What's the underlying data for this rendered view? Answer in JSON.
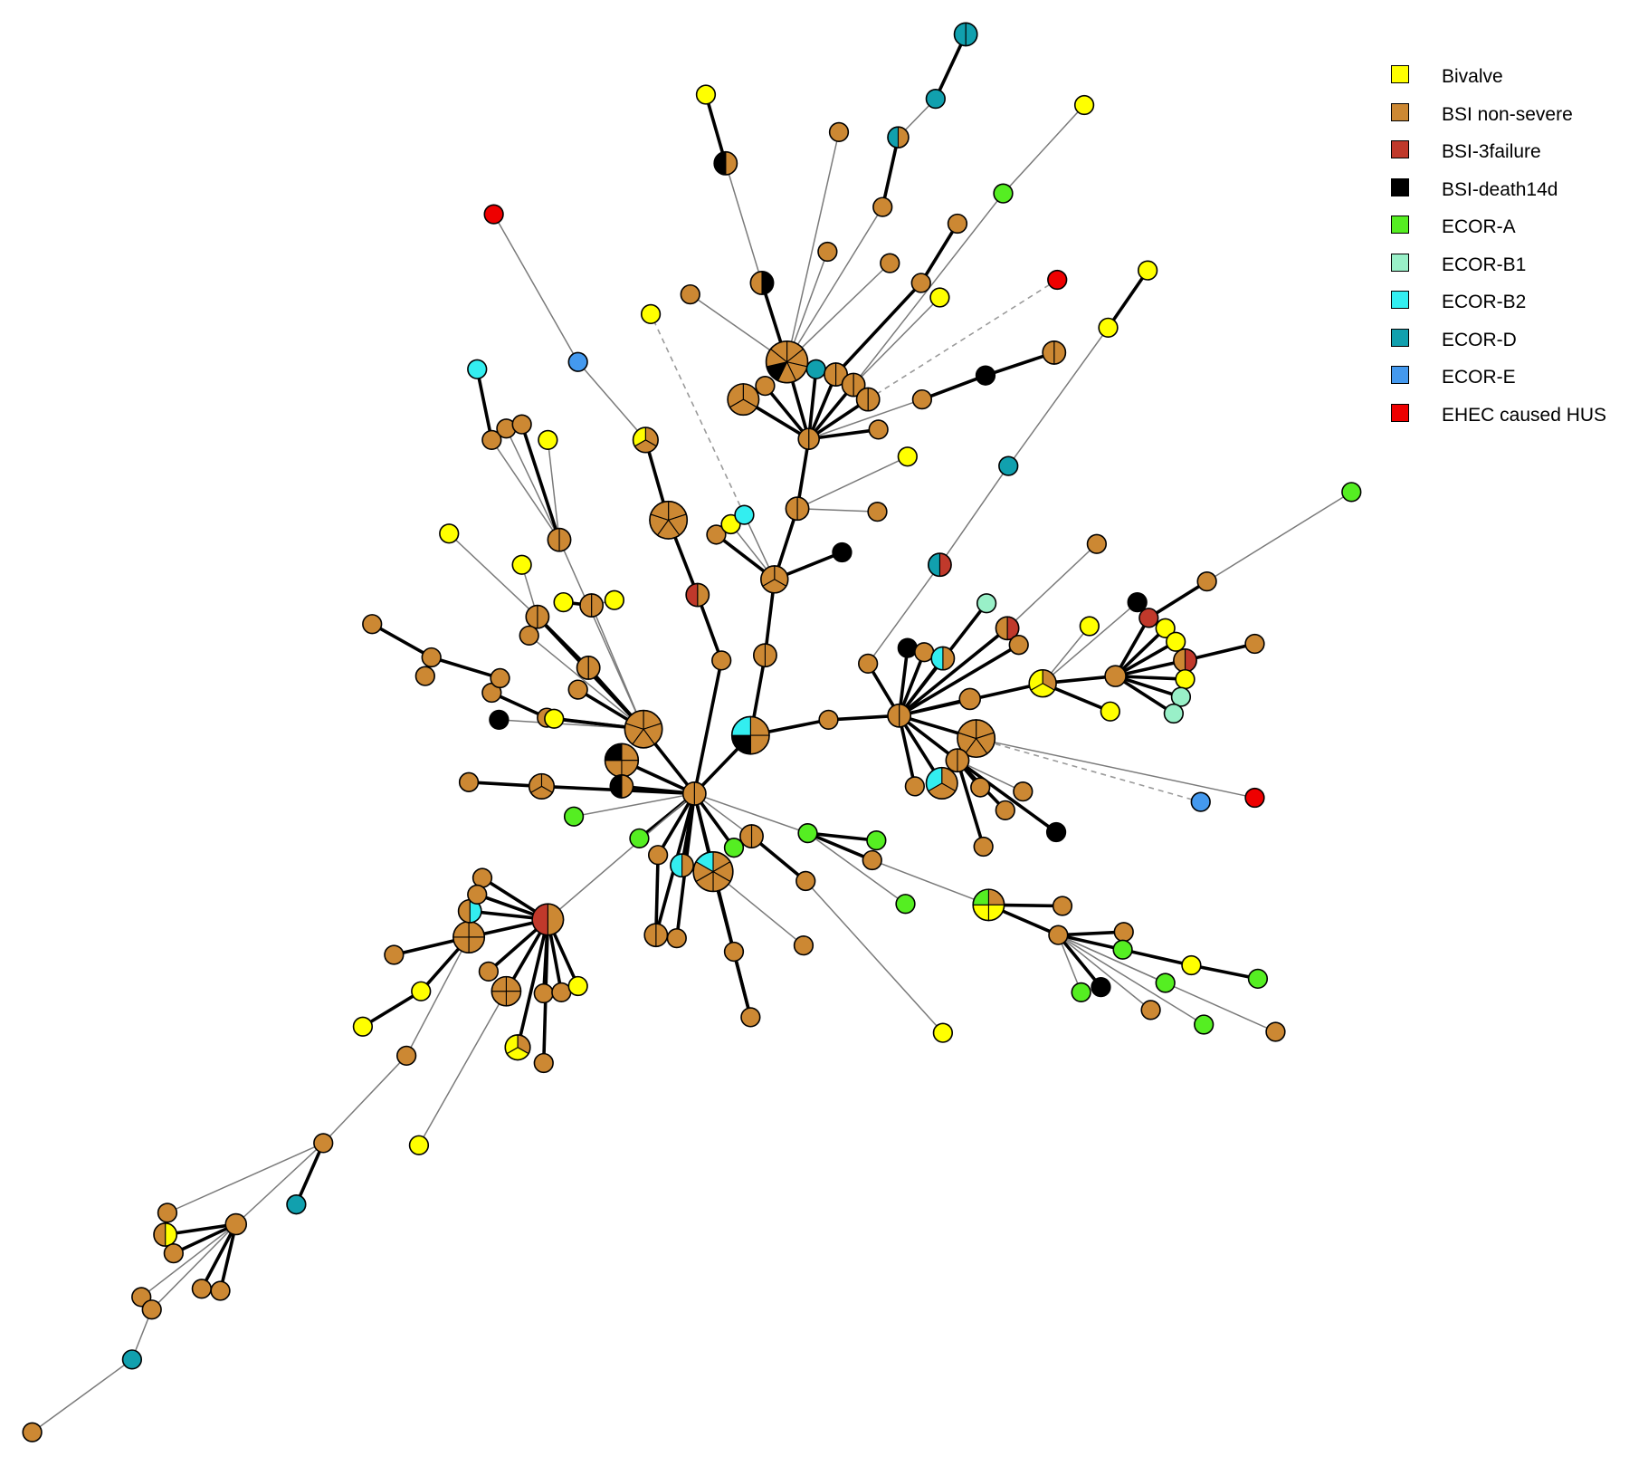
{
  "legend": {
    "items": [
      {
        "key": "bivalve",
        "label": "Bivalve",
        "color": "#FFFF00"
      },
      {
        "key": "bsi_non_severe",
        "label": "BSI non-severe",
        "color": "#CC8833"
      },
      {
        "key": "bsi_3failure",
        "label": "BSI-3failure",
        "color": "#C0392B"
      },
      {
        "key": "bsi_death14d",
        "label": "BSI-death14d",
        "color": "#000000"
      },
      {
        "key": "ecor_a",
        "label": "ECOR-A",
        "color": "#55EE22"
      },
      {
        "key": "ecor_b1",
        "label": "ECOR-B1",
        "color": "#99F0C8"
      },
      {
        "key": "ecor_b2",
        "label": "ECOR-B2",
        "color": "#33EEF0"
      },
      {
        "key": "ecor_d",
        "label": "ECOR-D",
        "color": "#11A0AE"
      },
      {
        "key": "ecor_e",
        "label": "ECOR-E",
        "color": "#4499EE"
      },
      {
        "key": "ehec_hus",
        "label": "EHEC caused HUS",
        "color": "#EE0000"
      }
    ]
  }
}
